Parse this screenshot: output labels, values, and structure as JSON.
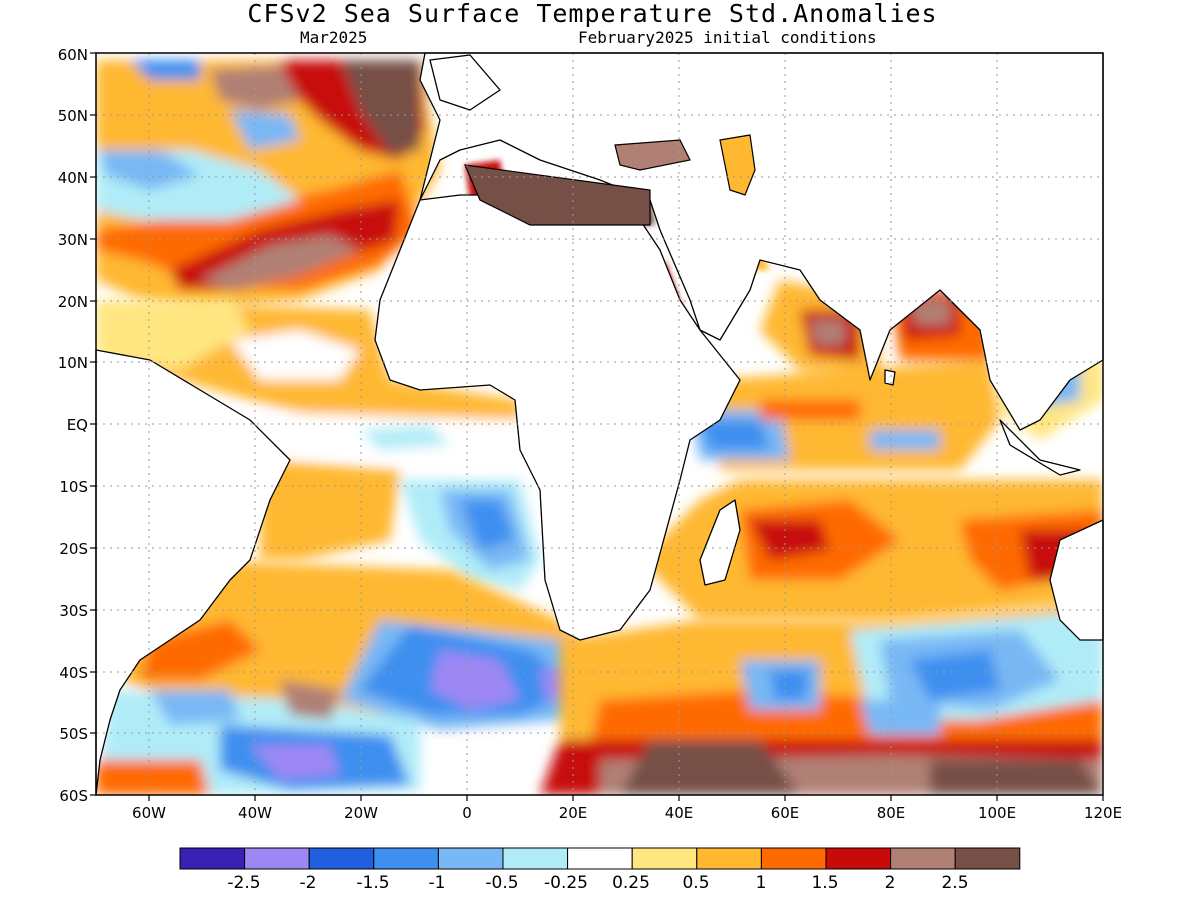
{
  "title": "CFSv2 Sea Surface Temperature Std.Anomalies",
  "subtitle_left": "Mar2025",
  "subtitle_right": "February2025 initial conditions",
  "map": {
    "lat_labels": [
      "60N",
      "50N",
      "40N",
      "30N",
      "20N",
      "10N",
      "EQ",
      "10S",
      "20S",
      "30S",
      "40S",
      "50S",
      "60S"
    ],
    "lon_labels": [
      "60W",
      "40W",
      "20W",
      "0",
      "20E",
      "40E",
      "60E",
      "80E",
      "100E",
      "120E"
    ],
    "lon_range": [
      -70,
      120
    ],
    "lat_range": [
      -60,
      60
    ],
    "grid": true
  },
  "colorbar": {
    "labels": [
      "-2.5",
      "-2",
      "-1.5",
      "-1",
      "-0.5",
      "-0.25",
      "0.25",
      "0.5",
      "1",
      "1.5",
      "2",
      "2.5"
    ],
    "colors": [
      "#3a1fb4",
      "#9e87f5",
      "#2060e0",
      "#3e8ff0",
      "#78b8f5",
      "#b0ecf8",
      "#ffffff",
      "#ffe680",
      "#ffb830",
      "#ff6a00",
      "#c80a0a",
      "#b08074",
      "#765046"
    ]
  }
}
